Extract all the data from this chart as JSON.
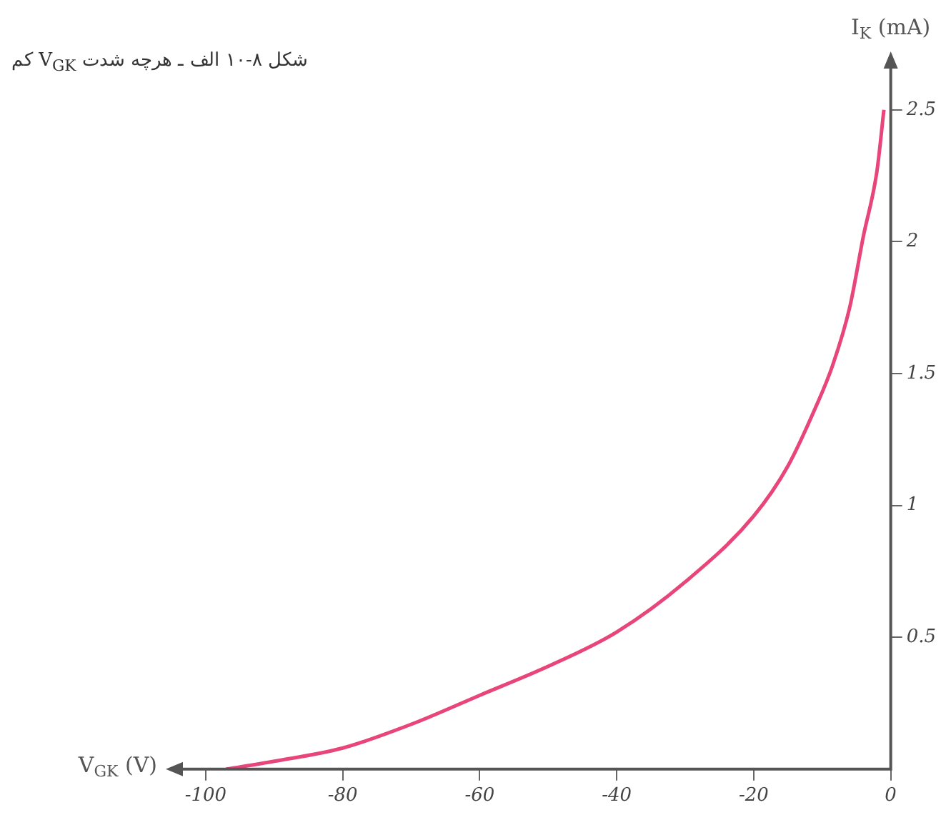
{
  "chart_data": {
    "type": "line",
    "title": "شکل ۸-۱۰ الف ـ هرچه شدت V$_{GK}$ کم",
    "xlabel": "V$_{GK}$ (V)",
    "ylabel": "I$_{K}$ (mA)",
    "x": [
      -97,
      -90,
      -80,
      -70,
      -60,
      -50,
      -40,
      -30,
      -20,
      -15,
      -11,
      -8.5,
      -6,
      -4,
      -2,
      -1
    ],
    "series": [
      {
        "color": "#e8457a",
        "values": [
          0,
          0.03,
          0.08,
          0.17,
          0.28,
          0.39,
          0.52,
          0.71,
          0.96,
          1.15,
          1.37,
          1.53,
          1.75,
          2.02,
          2.27,
          2.5
        ]
      }
    ],
    "xlim": [
      -105,
      0
    ],
    "xticks": [
      -100,
      -80,
      -60,
      -40,
      -20,
      0
    ],
    "ylim": [
      0,
      2.7
    ],
    "yticks": [
      0.5,
      1,
      1.5,
      2,
      2.5
    ],
    "grid": false,
    "legend": false,
    "marker": "none",
    "line_style": "solid"
  }
}
